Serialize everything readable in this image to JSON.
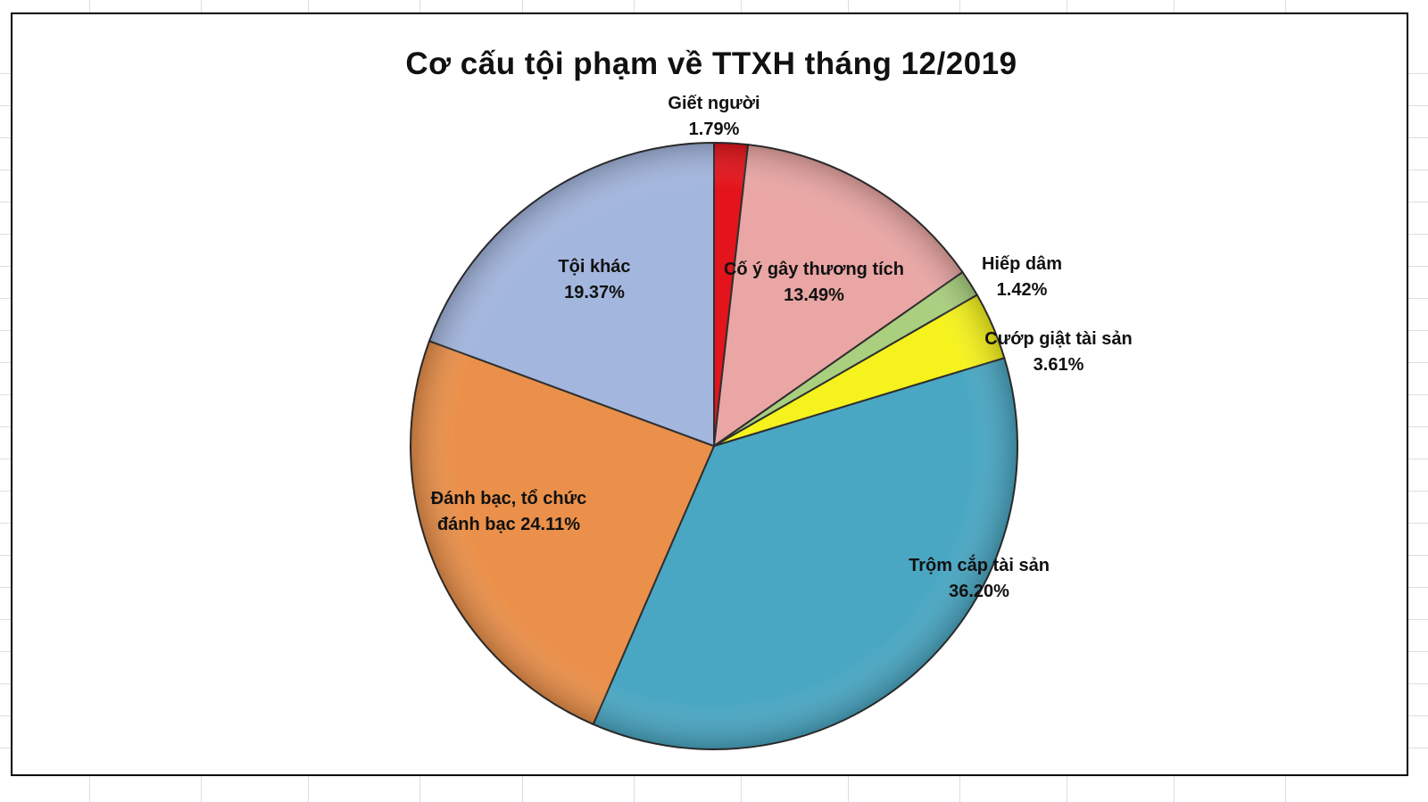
{
  "chart_data": {
    "type": "pie",
    "title": "Cơ cấu tội phạm về TTXH  tháng 12/2019",
    "slices": [
      {
        "label": "Giết người",
        "value": 1.79,
        "display": "1.79%",
        "color": "#e3141b"
      },
      {
        "label": "Cố ý gây thương tích",
        "value": 13.49,
        "display": "13.49%",
        "color": "#e9a6a4"
      },
      {
        "label": "Hiếp dâm",
        "value": 1.42,
        "display": "1.42%",
        "color": "#a9cf7f"
      },
      {
        "label": "Cướp giật tài sản",
        "value": 3.61,
        "display": "3.61%",
        "color": "#f5f21d"
      },
      {
        "label": "Trộm cắp tài sản",
        "value": 36.2,
        "display": "36.20%",
        "color": "#4aa7c3"
      },
      {
        "label": "Đánh bạc, tổ chức đánh bạc",
        "value": 24.11,
        "display": "24.11%",
        "color": "#ea904a"
      },
      {
        "label": "Tội khác",
        "value": 19.37,
        "display": "19.37%",
        "color": "#a3b6de"
      }
    ],
    "labels": [
      {
        "lines": [
          "Giết người",
          "1.79%"
        ]
      },
      {
        "lines": [
          "Cố ý gây thương tích",
          "13.49%"
        ]
      },
      {
        "lines": [
          "Hiếp dâm",
          "1.42%"
        ]
      },
      {
        "lines": [
          "Cướp giật tài sản",
          "3.61%"
        ]
      },
      {
        "lines": [
          "Trộm cắp tài sản",
          "36.20%"
        ]
      },
      {
        "lines": [
          "Đánh bạc, tổ chức",
          "đánh bạc 24.11%"
        ]
      },
      {
        "lines": [
          "Tội khác",
          "19.37%"
        ]
      }
    ]
  }
}
